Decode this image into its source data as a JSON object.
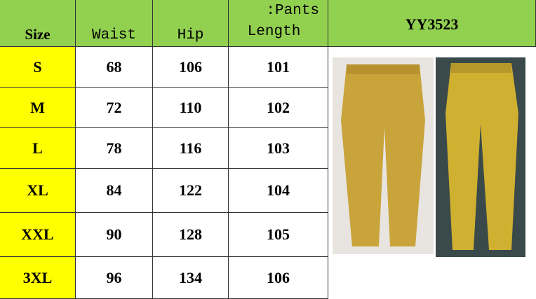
{
  "header": {
    "size": "Size",
    "waist": "Waist",
    "hip": "Hip",
    "length_line1": ":Pants",
    "length_line2": "Length",
    "product_code": "YY3523"
  },
  "rows": [
    {
      "size": "S",
      "waist": "68",
      "hip": "106",
      "length": "101"
    },
    {
      "size": "M",
      "waist": "72",
      "hip": "110",
      "length": "102"
    },
    {
      "size": "L",
      "waist": "78",
      "hip": "116",
      "length": "103"
    },
    {
      "size": "XL",
      "waist": "84",
      "hip": "122",
      "length": "104"
    },
    {
      "size": "XXL",
      "waist": "90",
      "hip": "128",
      "length": "105"
    },
    {
      "size": "3XL",
      "waist": "96",
      "hip": "134",
      "length": "106"
    }
  ],
  "colors": {
    "header_bg": "#92d050",
    "size_bg": "#ffff00",
    "pants": "#c9a43a"
  }
}
